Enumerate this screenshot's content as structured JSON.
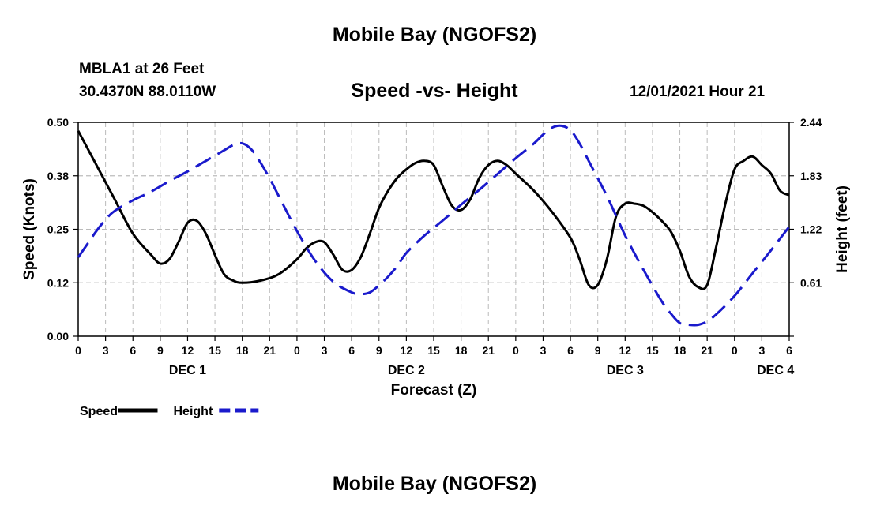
{
  "header": {
    "title": "Mobile Bay (NGOFS2)",
    "station": "MBLA1 at 26 Feet",
    "coords": "30.4370N  88.0110W",
    "subtitle": "Speed -vs- Height",
    "datetime": "12/01/2021 Hour 21",
    "repeat_title": "Mobile Bay (NGOFS2)"
  },
  "colors": {
    "speed": "#000000",
    "height": "#1a1acc",
    "grid": "#bbbbbb"
  },
  "chart_data": {
    "type": "line",
    "xlabel": "Forecast (Z)",
    "ylabel_left": "Speed (Knots)",
    "ylabel_right": "Height (feet)",
    "xlim": [
      0,
      78
    ],
    "ylim_left": [
      0,
      0.5
    ],
    "ylim_right": [
      0,
      2.44
    ],
    "x_ticks": [
      0,
      3,
      6,
      9,
      12,
      15,
      18,
      21,
      24,
      27,
      30,
      33,
      36,
      39,
      42,
      45,
      48,
      51,
      54,
      57,
      60,
      63,
      66,
      69,
      72,
      75,
      78
    ],
    "x_tick_labels": [
      "0",
      "3",
      "6",
      "9",
      "12",
      "15",
      "18",
      "21",
      "0",
      "3",
      "6",
      "9",
      "12",
      "15",
      "18",
      "21",
      "0",
      "3",
      "6",
      "9",
      "12",
      "15",
      "18",
      "21",
      "0",
      "3",
      "6"
    ],
    "y_left_ticks": [
      0,
      0.125,
      0.25,
      0.375,
      0.5
    ],
    "y_left_tick_labels": [
      "0.00",
      "0.12",
      "0.25",
      "0.38",
      "0.50"
    ],
    "y_right_ticks": [
      0.61,
      1.22,
      1.83,
      2.44
    ],
    "y_right_tick_labels": [
      "0.61",
      "1.22",
      "1.83",
      "2.44"
    ],
    "day_labels": [
      {
        "x": 12,
        "label": "DEC 1"
      },
      {
        "x": 36,
        "label": "DEC 2"
      },
      {
        "x": 60,
        "label": "DEC 3"
      },
      {
        "x": 76.5,
        "label": "DEC 4"
      }
    ],
    "grid": true,
    "legend_position": "bottom-left",
    "series": [
      {
        "name": "Speed",
        "axis": "left",
        "style": "solid",
        "x": [
          0,
          2,
          4,
          6,
          8,
          9,
          10,
          11,
          12,
          13,
          14,
          15,
          16,
          17,
          18,
          20,
          22,
          24,
          25,
          26,
          27,
          28,
          29,
          30,
          31,
          32,
          33,
          34,
          35,
          36,
          37,
          38,
          39,
          40,
          41,
          42,
          43,
          44,
          45,
          46,
          47,
          48,
          50,
          52,
          54,
          55,
          56,
          57,
          58,
          59,
          60,
          61,
          62,
          63,
          64,
          65,
          66,
          67,
          68,
          69,
          70,
          71,
          72,
          73,
          74,
          75,
          76,
          77,
          78
        ],
        "y": [
          0.48,
          0.4,
          0.32,
          0.24,
          0.19,
          0.17,
          0.18,
          0.22,
          0.265,
          0.27,
          0.24,
          0.19,
          0.145,
          0.13,
          0.125,
          0.13,
          0.145,
          0.18,
          0.205,
          0.22,
          0.22,
          0.19,
          0.155,
          0.155,
          0.185,
          0.24,
          0.3,
          0.34,
          0.37,
          0.39,
          0.405,
          0.41,
          0.4,
          0.35,
          0.305,
          0.295,
          0.32,
          0.37,
          0.4,
          0.41,
          0.4,
          0.38,
          0.34,
          0.29,
          0.23,
          0.18,
          0.12,
          0.12,
          0.18,
          0.28,
          0.31,
          0.31,
          0.305,
          0.29,
          0.27,
          0.245,
          0.2,
          0.14,
          0.115,
          0.12,
          0.21,
          0.31,
          0.39,
          0.41,
          0.42,
          0.4,
          0.38,
          0.34,
          0.33
        ]
      },
      {
        "name": "Height",
        "axis": "right",
        "style": "dashed",
        "x": [
          0,
          1,
          2,
          3,
          4,
          6,
          8,
          10,
          12,
          14,
          15,
          16,
          17,
          18,
          19,
          20,
          21,
          22,
          24,
          26,
          28,
          30,
          31,
          32,
          33,
          34,
          35,
          36,
          38,
          40,
          42,
          44,
          46,
          48,
          50,
          51,
          52,
          53,
          54,
          55,
          56,
          58,
          60,
          62,
          64,
          65,
          66,
          67,
          68,
          69,
          70,
          72,
          74,
          76,
          78
        ],
        "y": [
          0.9,
          1.05,
          1.2,
          1.33,
          1.43,
          1.55,
          1.65,
          1.77,
          1.88,
          2.0,
          2.06,
          2.12,
          2.18,
          2.2,
          2.13,
          1.98,
          1.8,
          1.6,
          1.2,
          0.86,
          0.62,
          0.5,
          0.48,
          0.5,
          0.58,
          0.68,
          0.8,
          0.95,
          1.15,
          1.32,
          1.5,
          1.67,
          1.85,
          2.03,
          2.2,
          2.3,
          2.38,
          2.4,
          2.35,
          2.2,
          2.0,
          1.6,
          1.15,
          0.76,
          0.4,
          0.26,
          0.15,
          0.13,
          0.13,
          0.17,
          0.25,
          0.46,
          0.72,
          0.98,
          1.25
        ]
      }
    ]
  }
}
